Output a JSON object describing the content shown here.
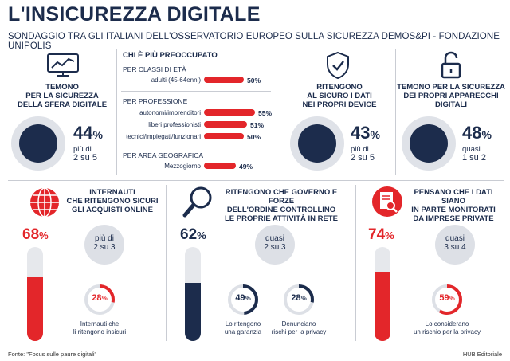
{
  "title": "L'INSICUREZZA DIGITALE",
  "subtitle": "SONDAGGIO TRA GLI ITALIANI DELL'OSSERVATORIO EUROPEO SULLA SICUREZZA DEMOS&PI - FONDAZIONE UNIPOLIS",
  "card1": {
    "heading": "TEMONO PER LA SICUREZZA DELLA SFERA DIGITALE",
    "heading_l1": "TEMONO",
    "heading_l2": "PER LA SICUREZZA",
    "heading_l3": "DELLA SFERA DIGITALE",
    "pct": "44",
    "note_l1": "più di",
    "note_l2": "2 su 5",
    "icon": "chart-monitor-icon"
  },
  "middle": {
    "heading": "CHI È PIÙ PREOCCUPATO",
    "groups": [
      {
        "label": "PER CLASSI DI ETÀ",
        "rows": [
          {
            "label": "adulti (45-64enni)",
            "value": 50,
            "text": "50"
          }
        ]
      },
      {
        "label": "PER PROFESSIONE",
        "rows": [
          {
            "label": "autonomi/imprenditori",
            "value": 55,
            "text": "55"
          },
          {
            "label": "liberi professionisti",
            "value": 51,
            "text": "51"
          },
          {
            "label": "tecnici/impiegati/funzionari",
            "value": 50,
            "text": "50"
          }
        ]
      },
      {
        "label": "PER AREA GEOGRAFICA",
        "rows": [
          {
            "label": "Mezzogiorno",
            "value": 49,
            "text": "49"
          }
        ]
      }
    ]
  },
  "card3": {
    "heading_l1": "RITENGONO",
    "heading_l2": "AL SICURO I DATI",
    "heading_l3": "NEI PROPRI DEVICE",
    "pct": "43",
    "note_l1": "più di",
    "note_l2": "2 su 5",
    "icon": "shield-check-icon"
  },
  "card4": {
    "heading_l1": "TEMONO PER LA SICUREZZA",
    "heading_l2": "DEI PROPRI APPARECCHI",
    "heading_l3": "DIGITALI",
    "pct": "48",
    "note_l1": "quasi",
    "note_l2": "1 su 2",
    "icon": "padlock-icon"
  },
  "bottom1": {
    "heading_l1": "INTERNAUTI",
    "heading_l2": "CHE RITENGONO SICURI",
    "heading_l3": "GLI ACQUISTI ONLINE",
    "pct": "68",
    "pill_l1": "più di",
    "pill_l2": "2 su 3",
    "ring_pct": "28",
    "ring_l1": "Internauti che",
    "ring_l2": "li ritengono insicuri",
    "icon": "globe-icon"
  },
  "bottom2": {
    "heading_l1": "RITENGONO CHE GOVERNO E FORZE",
    "heading_l2": "DELL'ORDINE CONTROLLINO",
    "heading_l3": "LE PROPRIE ATTIVITÀ IN RETE",
    "pct": "62",
    "pill_l1": "quasi",
    "pill_l2": "2 su 3",
    "ring1_pct": "49",
    "ring1_l1": "Lo ritengono",
    "ring1_l2": "una garanzia",
    "ring2_pct": "28",
    "ring2_l1": "Denunciano",
    "ring2_l2": "rischi per la privacy",
    "icon": "magnifier-icon"
  },
  "bottom3": {
    "heading_l1": "PENSANO CHE I DATI SIANO",
    "heading_l2": "IN PARTE  MONITORATI",
    "heading_l3": "DA IMPRESE  PRIVATE",
    "pct": "74",
    "pill_l1": "quasi",
    "pill_l2": "3 su 4",
    "ring_pct": "59",
    "ring_l1": "Lo considerano",
    "ring_l2": "un rischio per la privacy",
    "icon": "document-search-icon"
  },
  "pct_sign": "%",
  "footer_left": "Fonte: \"Focus sulle paure digitali\"",
  "footer_right": "HUB Editoriale",
  "colors": {
    "navy": "#1c2c4c",
    "red": "#e3262a",
    "grey": "#dde0e6"
  }
}
